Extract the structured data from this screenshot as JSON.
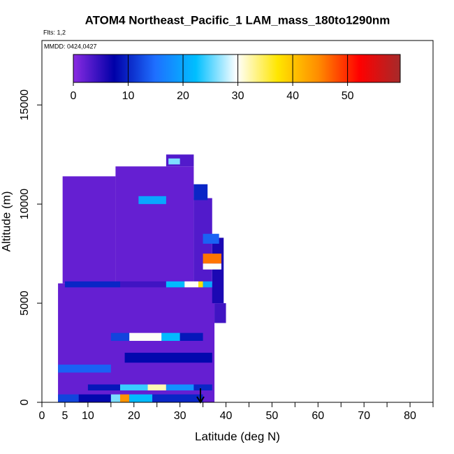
{
  "chart_data": {
    "type": "curtain",
    "title": "ATOM4 Northeast_Pacific_1 LAM_mass_180to1290nm",
    "subtitle": "Flts: 1,2",
    "annotation": "MMDD: 0424,0427",
    "x_label": "Latitude (deg N)",
    "y_label": "Altitude (m)",
    "xlim": [
      0,
      85
    ],
    "ylim": [
      0,
      18250
    ],
    "xticks": [
      0,
      5,
      10,
      20,
      30,
      40,
      50,
      60,
      70,
      80
    ],
    "xminorticks": [
      15,
      25,
      35,
      45,
      55,
      65,
      75,
      85
    ],
    "yticks": [
      0,
      5000,
      10000,
      15000
    ],
    "clim": [
      0,
      59.6
    ],
    "cticks": [
      0,
      10,
      20,
      30,
      40,
      50
    ],
    "colormap": [
      "#8a2be2",
      "#0000a8",
      "#1e6fff",
      "#00bfff",
      "#ffffff",
      "#ffe600",
      "#ff8c00",
      "#ff0000",
      "#a52a2a"
    ],
    "cells": [
      {
        "lat": [
          3.5,
          37.5
        ],
        "alt": [
          0,
          6000
        ],
        "value": 2
      },
      {
        "lat": [
          4.5,
          16
        ],
        "alt": [
          6000,
          11400
        ],
        "value": 2
      },
      {
        "lat": [
          16,
          33
        ],
        "alt": [
          6000,
          11900
        ],
        "value": 2
      },
      {
        "lat": [
          27,
          33
        ],
        "alt": [
          11900,
          12500
        ],
        "value": 3
      },
      {
        "lat": [
          33,
          37
        ],
        "alt": [
          6000,
          10300
        ],
        "value": 3
      },
      {
        "lat": [
          37,
          39.5
        ],
        "alt": [
          5000,
          8300
        ],
        "value": 6
      },
      {
        "lat": [
          37.5,
          40
        ],
        "alt": [
          4000,
          5000
        ],
        "value": 4
      },
      {
        "lat": [
          5,
          17
        ],
        "alt": [
          5800,
          6100
        ],
        "value": 10
      },
      {
        "lat": [
          17,
          27
        ],
        "alt": [
          5800,
          6100
        ],
        "value": 4
      },
      {
        "lat": [
          27,
          31
        ],
        "alt": [
          5800,
          6100
        ],
        "value": 22
      },
      {
        "lat": [
          31,
          34
        ],
        "alt": [
          5800,
          6100
        ],
        "value": 30
      },
      {
        "lat": [
          34,
          35
        ],
        "alt": [
          5800,
          6100
        ],
        "value": 38
      },
      {
        "lat": [
          35,
          37
        ],
        "alt": [
          5800,
          6100
        ],
        "value": 20
      },
      {
        "lat": [
          15,
          19
        ],
        "alt": [
          3100,
          3500
        ],
        "value": 12
      },
      {
        "lat": [
          19,
          26
        ],
        "alt": [
          3100,
          3500
        ],
        "value": 30
      },
      {
        "lat": [
          26,
          30
        ],
        "alt": [
          3100,
          3500
        ],
        "value": 22
      },
      {
        "lat": [
          30,
          35
        ],
        "alt": [
          3100,
          3500
        ],
        "value": 9
      },
      {
        "lat": [
          18,
          37
        ],
        "alt": [
          2000,
          2500
        ],
        "value": 8
      },
      {
        "lat": [
          3.5,
          15
        ],
        "alt": [
          1500,
          1900
        ],
        "value": 14
      },
      {
        "lat": [
          10,
          17
        ],
        "alt": [
          600,
          900
        ],
        "value": 9
      },
      {
        "lat": [
          17,
          23
        ],
        "alt": [
          600,
          900
        ],
        "value": 24
      },
      {
        "lat": [
          23,
          27
        ],
        "alt": [
          600,
          900
        ],
        "value": 32
      },
      {
        "lat": [
          27,
          33
        ],
        "alt": [
          600,
          900
        ],
        "value": 18
      },
      {
        "lat": [
          33,
          37
        ],
        "alt": [
          600,
          900
        ],
        "value": 10
      },
      {
        "lat": [
          3.5,
          8
        ],
        "alt": [
          0,
          400
        ],
        "value": 12
      },
      {
        "lat": [
          8,
          15
        ],
        "alt": [
          0,
          400
        ],
        "value": 8
      },
      {
        "lat": [
          15,
          17
        ],
        "alt": [
          0,
          400
        ],
        "value": 26
      },
      {
        "lat": [
          17,
          19
        ],
        "alt": [
          0,
          400
        ],
        "value": 44
      },
      {
        "lat": [
          19,
          24
        ],
        "alt": [
          0,
          400
        ],
        "value": 22
      },
      {
        "lat": [
          24,
          35
        ],
        "alt": [
          0,
          400
        ],
        "value": 10
      },
      {
        "lat": [
          35,
          39
        ],
        "alt": [
          7000,
          7500
        ],
        "value": 46
      },
      {
        "lat": [
          35,
          39
        ],
        "alt": [
          6700,
          7000
        ],
        "value": 30
      },
      {
        "lat": [
          35,
          38.5
        ],
        "alt": [
          8000,
          8500
        ],
        "value": 14
      },
      {
        "lat": [
          21,
          27
        ],
        "alt": [
          10000,
          10400
        ],
        "value": 20
      },
      {
        "lat": [
          27.5,
          30
        ],
        "alt": [
          12000,
          12300
        ],
        "value": 26
      },
      {
        "lat": [
          33,
          36
        ],
        "alt": [
          10200,
          11000
        ],
        "value": 10
      }
    ]
  }
}
